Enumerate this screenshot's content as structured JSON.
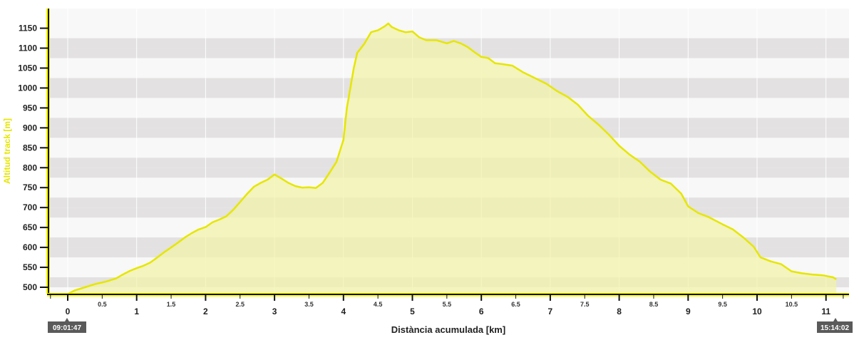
{
  "chart_data": {
    "type": "area",
    "title": "",
    "xlabel": "Distància acumulada [km]",
    "ylabel": "Altitud track [m]",
    "xlim": [
      -0.25,
      11.35
    ],
    "ylim": [
      480,
      1165
    ],
    "x_major_ticks": [
      "0",
      "1",
      "2",
      "3",
      "4",
      "5",
      "6",
      "7",
      "8",
      "9",
      "10",
      "11"
    ],
    "x_minor_ticks": [
      "0.5",
      "1.5",
      "2.5",
      "3.5",
      "4.5",
      "5.5",
      "6.5",
      "7.5",
      "8.5",
      "9.5",
      "10.5"
    ],
    "y_ticks": [
      "500",
      "550",
      "600",
      "650",
      "700",
      "750",
      "800",
      "850",
      "900",
      "950",
      "1000",
      "1050",
      "1100",
      "1150"
    ],
    "grid": "horizontal alternating bands",
    "colors": {
      "line": "#e6e600",
      "fill": "#f3f3a8",
      "band_dark": "#e3e1e1",
      "band_light": "#f8f8f8",
      "axis_accent": "#ffff00",
      "time_box": "#5a5a5a"
    },
    "start_time": "09:01:47",
    "end_time": "15:14:02",
    "series": [
      {
        "x": [
          0,
          0.1,
          0.25,
          0.4,
          0.55,
          0.7,
          0.8,
          0.9,
          1.0,
          1.1,
          1.2,
          1.3,
          1.4,
          1.5,
          1.6,
          1.7,
          1.8,
          1.9,
          2.0,
          2.1,
          2.2,
          2.3,
          2.4,
          2.5,
          2.6,
          2.7,
          2.8,
          2.9,
          3.0,
          3.1,
          3.2,
          3.3,
          3.4,
          3.5,
          3.6,
          3.7,
          3.8,
          3.9,
          4.0,
          4.05,
          4.1,
          4.15,
          4.2,
          4.3,
          4.4,
          4.5,
          4.6,
          4.65,
          4.7,
          4.8,
          4.9,
          5.0,
          5.1,
          5.2,
          5.35,
          5.5,
          5.6,
          5.7,
          5.8,
          5.9,
          6.0,
          6.1,
          6.2,
          6.3,
          6.45,
          6.6,
          6.8,
          6.95,
          7.1,
          7.25,
          7.4,
          7.55,
          7.7,
          7.85,
          8.0,
          8.15,
          8.3,
          8.45,
          8.6,
          8.75,
          8.9,
          9.0,
          9.15,
          9.3,
          9.5,
          9.65,
          9.8,
          9.95,
          10.05,
          10.2,
          10.35,
          10.5,
          10.65,
          10.8,
          10.95,
          11.1,
          11.15
        ],
        "values": [
          483,
          492,
          500,
          508,
          514,
          522,
          532,
          541,
          548,
          554,
          562,
          575,
          588,
          600,
          612,
          625,
          636,
          645,
          651,
          663,
          670,
          678,
          694,
          714,
          734,
          752,
          762,
          770,
          783,
          773,
          762,
          754,
          750,
          751,
          749,
          762,
          788,
          815,
          870,
          950,
          1000,
          1050,
          1088,
          1110,
          1140,
          1145,
          1155,
          1162,
          1153,
          1145,
          1140,
          1142,
          1127,
          1120,
          1120,
          1112,
          1118,
          1112,
          1103,
          1090,
          1078,
          1075,
          1062,
          1060,
          1056,
          1040,
          1023,
          1010,
          992,
          978,
          958,
          930,
          908,
          883,
          855,
          833,
          815,
          790,
          770,
          760,
          735,
          703,
          686,
          676,
          658,
          645,
          625,
          602,
          575,
          565,
          558,
          540,
          535,
          532,
          530,
          525,
          520
        ]
      }
    ]
  }
}
